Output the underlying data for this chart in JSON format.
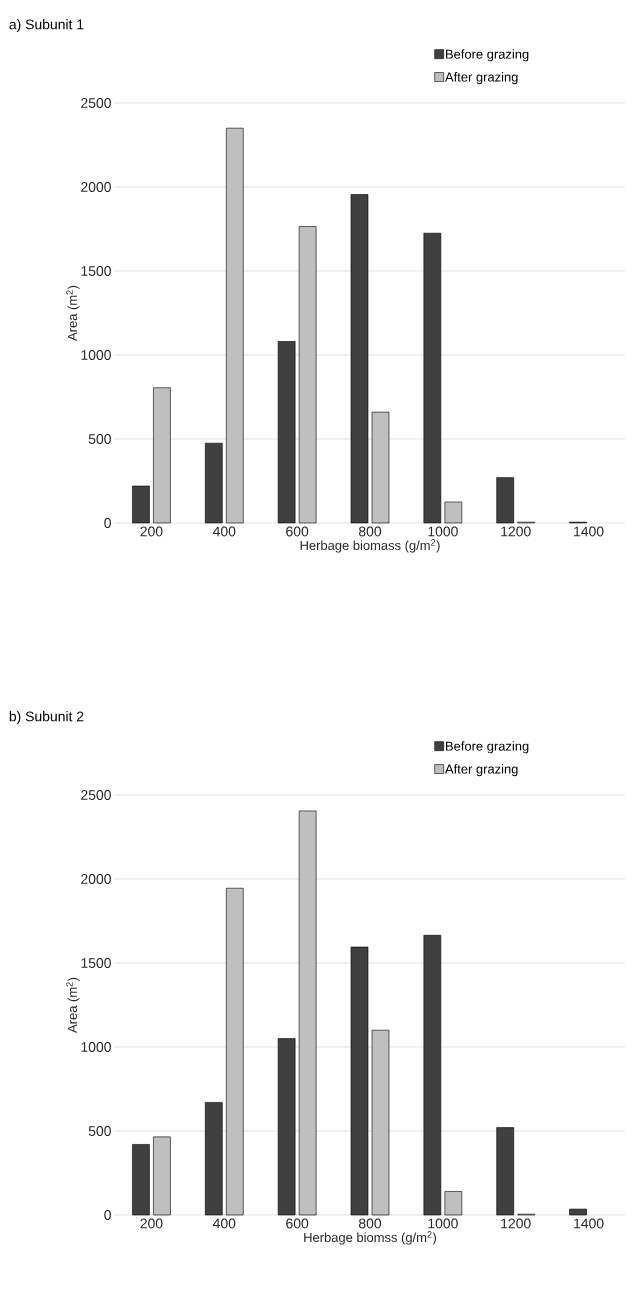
{
  "chart_data": [
    {
      "type": "bar",
      "title": "a) Subunit  1",
      "xlabel": "Herbage biomass (g/m$^{2}$)",
      "ylabel": "Area (m$^{2}$)",
      "categories": [
        "200",
        "400",
        "600",
        "800",
        "1000",
        "1200",
        "1400"
      ],
      "series": [
        {
          "name": "Before grazing",
          "color": "#404040",
          "values": [
            220,
            475,
            1080,
            1955,
            1725,
            270,
            5
          ]
        },
        {
          "name": "After grazing",
          "color": "#bfbfbf",
          "values": [
            805,
            2350,
            1765,
            660,
            125,
            5,
            null
          ]
        }
      ],
      "ylim": [
        0,
        2500
      ],
      "yticks": [
        0,
        500,
        1000,
        1500,
        2000,
        2500
      ],
      "grid": "y",
      "legend": "top right"
    },
    {
      "type": "bar",
      "title": "b) Subunit  2",
      "xlabel": "Herbage biomss (g/m$^{2}$)",
      "ylabel": "Area (m$^{2}$)",
      "categories": [
        "200",
        "400",
        "600",
        "800",
        "1000",
        "1200",
        "1400"
      ],
      "series": [
        {
          "name": "Before grazing",
          "color": "#404040",
          "values": [
            420,
            670,
            1050,
            1595,
            1665,
            520,
            35
          ]
        },
        {
          "name": "After grazing",
          "color": "#bfbfbf",
          "values": [
            465,
            1945,
            2405,
            1100,
            140,
            5,
            null
          ]
        }
      ],
      "ylim": [
        0,
        2500
      ],
      "yticks": [
        0,
        500,
        1000,
        1500,
        2000,
        2500
      ],
      "grid": "y",
      "legend": "top right"
    }
  ]
}
